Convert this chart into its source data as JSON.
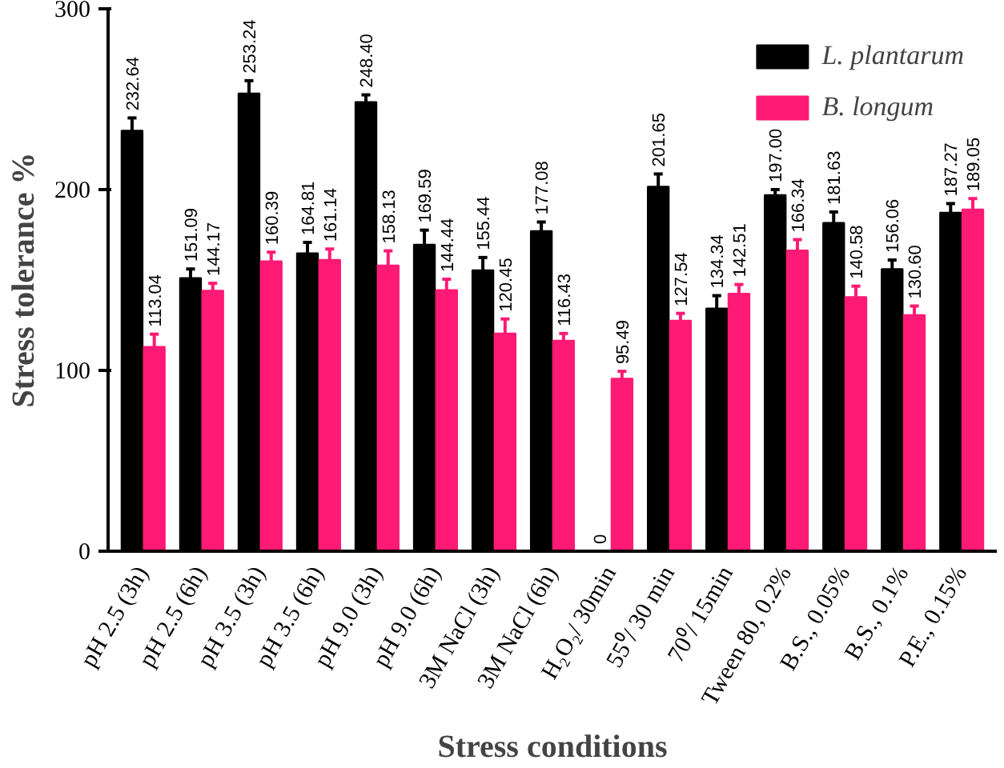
{
  "chart_data": {
    "type": "bar",
    "xlabel": "Stress conditions",
    "ylabel": "Stress tolerance %",
    "categories": [
      "pH 2.5 (3h)",
      "pH 2.5 (6h)",
      "pH 3.5 (3h)",
      "pH 3.5 (6h)",
      "pH 9.0 (3h)",
      "pH 9.0 (6h)",
      "3M NaCl (3h)",
      "3M NaCl (6h)",
      "H₂O₂/ 30min",
      "55⁰/ 30 min",
      "70⁰/ 15min",
      "Tween 80, 0.2%",
      "B.S., 0.05%",
      "B.S., 0.1%",
      "P.E., 0.15%"
    ],
    "series": [
      {
        "name": "L. plantarum",
        "color": "#000000",
        "values": [
          232.64,
          151.09,
          253.24,
          164.81,
          248.4,
          169.59,
          155.44,
          177.08,
          0,
          201.65,
          134.34,
          197.0,
          181.63,
          156.06,
          187.27
        ],
        "errors": [
          7,
          5,
          7,
          6,
          4,
          8,
          7,
          5,
          null,
          7,
          7,
          3,
          6,
          5,
          5
        ],
        "value_labels": [
          "232.64",
          "151.09",
          "253.24",
          "164.81",
          "248.40",
          "169.59",
          "155.44",
          "177.08",
          "0",
          "201.65",
          "134.34",
          "197.00",
          "181.63",
          "156.06",
          "187.27"
        ]
      },
      {
        "name": "B. longum",
        "color": "#ff1a75",
        "values": [
          113.04,
          144.17,
          160.39,
          161.14,
          158.13,
          144.44,
          120.45,
          116.43,
          95.49,
          127.54,
          142.51,
          166.34,
          140.58,
          130.6,
          189.05
        ],
        "errors": [
          7,
          4,
          5,
          6,
          8,
          6,
          8,
          4,
          4,
          4,
          5,
          6,
          6,
          5,
          6
        ],
        "value_labels": [
          "113.04",
          "144.17",
          "160.39",
          "161.14",
          "158.13",
          "144.44",
          "120.45",
          "116.43",
          "95.49",
          "127.54",
          "142.51",
          "166.34",
          "140.58",
          "130.60",
          "189.05"
        ]
      }
    ],
    "ylim": [
      0,
      300
    ],
    "yticks": [
      0,
      100,
      200,
      300
    ],
    "legend": "top right",
    "grid": false
  }
}
